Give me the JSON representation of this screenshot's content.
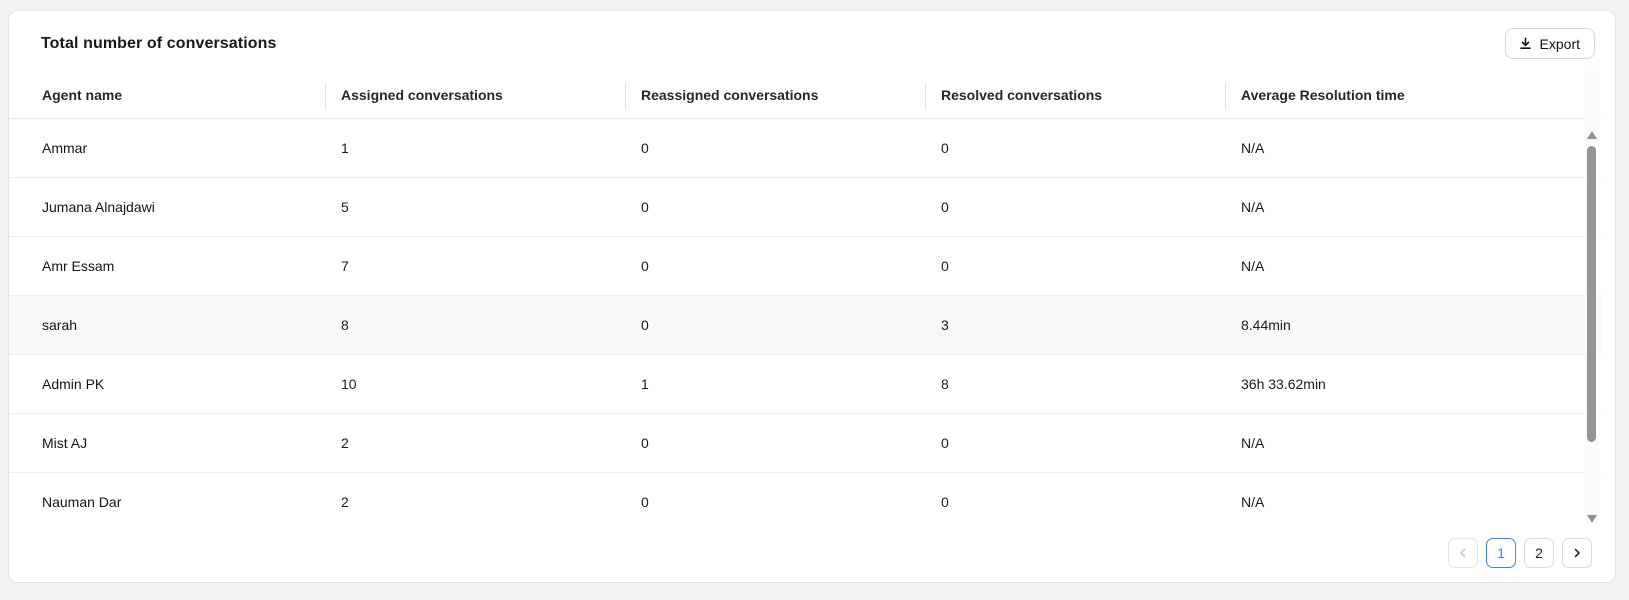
{
  "card": {
    "title": "Total number of conversations",
    "export_button": {
      "label": "Export",
      "icon": "download-icon"
    }
  },
  "table": {
    "columns": [
      "Agent name",
      "Assigned conversations",
      "Reassigned conversations",
      "Resolved conversations",
      "Average Resolution time"
    ],
    "rows": [
      {
        "cells": [
          "Ammar",
          "1",
          "0",
          "0",
          "N/A"
        ],
        "highlighted": false
      },
      {
        "cells": [
          "Jumana Alnajdawi",
          "5",
          "0",
          "0",
          "N/A"
        ],
        "highlighted": false
      },
      {
        "cells": [
          "Amr Essam",
          "7",
          "0",
          "0",
          "N/A"
        ],
        "highlighted": false
      },
      {
        "cells": [
          "sarah",
          "8",
          "0",
          "3",
          "8.44min"
        ],
        "highlighted": true
      },
      {
        "cells": [
          "Admin PK",
          "10",
          "1",
          "8",
          "36h 33.62min"
        ],
        "highlighted": false
      },
      {
        "cells": [
          "Mist AJ",
          "2",
          "0",
          "0",
          "N/A"
        ],
        "highlighted": false
      },
      {
        "cells": [
          "Nauman Dar",
          "2",
          "0",
          "0",
          "N/A"
        ],
        "highlighted": false
      }
    ]
  },
  "pagination": {
    "pages": [
      "1",
      "2"
    ],
    "active_page": "1",
    "prev_icon": "chevron-left-icon",
    "next_icon": "chevron-right-icon",
    "prev_disabled": true
  },
  "scrollbar": {
    "up_icon": "scroll-up-arrow-icon",
    "down_icon": "scroll-down-arrow-icon"
  },
  "colors": {
    "accent_blue": "#3b82f6",
    "card_background": "#ffffff",
    "page_background": "#f1f1f3",
    "highlighted_row": "#f8f8f9",
    "border": "#e4e4e7",
    "text_primary": "#18181b"
  }
}
